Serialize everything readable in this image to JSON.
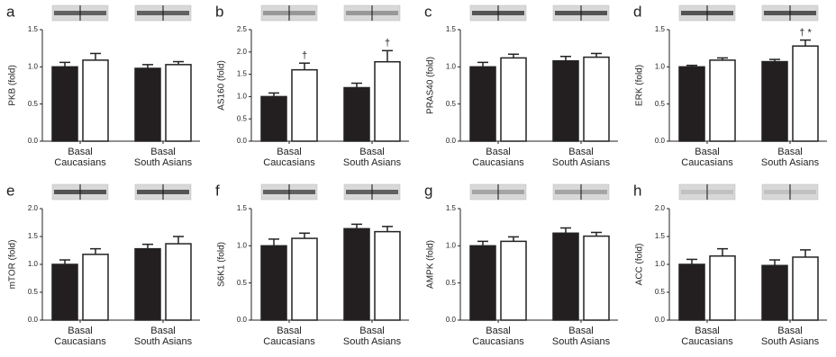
{
  "chart_data": [
    {
      "type": "bar",
      "panel": "a",
      "ylabel": "PKB (fold)",
      "categories": [
        [
          "Basal",
          "Caucasians"
        ],
        [
          "Basal",
          "South Asians"
        ]
      ],
      "ylim": [
        0,
        1.5
      ],
      "yticks": [
        {
          "value": 0,
          "label": "0.0"
        },
        0.5,
        {
          "value": 1,
          "label": "1.0"
        },
        1.5
      ],
      "series": [
        {
          "color": "#231f20",
          "values": [
            1.0,
            0.98
          ],
          "errors": [
            0.06,
            0.05
          ]
        },
        {
          "color": "#ffffff",
          "values": [
            1.09,
            1.03
          ],
          "errors": [
            0.09,
            0.04
          ]
        }
      ]
    },
    {
      "type": "bar",
      "panel": "b",
      "ylabel": "AS160 (fold)",
      "categories": [
        [
          "Basal",
          "Caucasians"
        ],
        [
          "Basal",
          "South Asians"
        ]
      ],
      "ylim": [
        0,
        2.5
      ],
      "yticks": [
        {
          "value": 0,
          "label": "0.0"
        },
        0.5,
        {
          "value": 1,
          "label": "1.0"
        },
        1.5,
        {
          "value": 2,
          "label": "2.0"
        },
        2.5
      ],
      "series": [
        {
          "color": "#231f20",
          "values": [
            1.0,
            1.2
          ],
          "errors": [
            0.08,
            0.1
          ]
        },
        {
          "color": "#ffffff",
          "values": [
            1.6,
            1.78
          ],
          "errors": [
            0.15,
            0.25
          ],
          "markers": [
            "†",
            "†"
          ]
        }
      ]
    },
    {
      "type": "bar",
      "panel": "c",
      "ylabel": "PRAS40 (fold)",
      "categories": [
        [
          "Basal",
          "Caucasians"
        ],
        [
          "Basal",
          "South Asians"
        ]
      ],
      "ylim": [
        0,
        1.5
      ],
      "yticks": [
        {
          "value": 0,
          "label": "0.0"
        },
        0.5,
        {
          "value": 1,
          "label": "1.0"
        },
        1.5
      ],
      "series": [
        {
          "color": "#231f20",
          "values": [
            1.0,
            1.08
          ],
          "errors": [
            0.06,
            0.06
          ]
        },
        {
          "color": "#ffffff",
          "values": [
            1.12,
            1.13
          ],
          "errors": [
            0.05,
            0.05
          ]
        }
      ]
    },
    {
      "type": "bar",
      "panel": "d",
      "ylabel": "ERK (fold)",
      "categories": [
        [
          "Basal",
          "Caucasians"
        ],
        [
          "Basal",
          "South Asians"
        ]
      ],
      "ylim": [
        0,
        1.5
      ],
      "yticks": [
        {
          "value": 0,
          "label": "0.0"
        },
        0.5,
        {
          "value": 1,
          "label": "1.0"
        },
        1.5
      ],
      "series": [
        {
          "color": "#231f20",
          "values": [
            1.0,
            1.07
          ],
          "errors": [
            0.02,
            0.03
          ]
        },
        {
          "color": "#ffffff",
          "values": [
            1.09,
            1.28
          ],
          "errors": [
            0.03,
            0.08
          ],
          "markers": [
            null,
            "† *"
          ]
        }
      ]
    },
    {
      "type": "bar",
      "panel": "e",
      "ylabel": "mTOR (fold)",
      "categories": [
        [
          "Basal",
          "Caucasians"
        ],
        [
          "Basal",
          "South Asians"
        ]
      ],
      "ylim": [
        0,
        2.0
      ],
      "yticks": [
        {
          "value": 0,
          "label": "0.0"
        },
        0.5,
        {
          "value": 1,
          "label": "1.0"
        },
        1.5,
        {
          "value": 2,
          "label": "2.0"
        }
      ],
      "series": [
        {
          "color": "#231f20",
          "values": [
            1.0,
            1.28
          ],
          "errors": [
            0.08,
            0.08
          ]
        },
        {
          "color": "#ffffff",
          "values": [
            1.18,
            1.37
          ],
          "errors": [
            0.1,
            0.13
          ]
        }
      ]
    },
    {
      "type": "bar",
      "panel": "f",
      "ylabel": "S6K1 (fold)",
      "categories": [
        [
          "Basal",
          "Caucasians"
        ],
        [
          "Basal",
          "South Asians"
        ]
      ],
      "ylim": [
        0,
        1.5
      ],
      "yticks": [
        {
          "value": 0,
          "label": "0.0"
        },
        0.5,
        {
          "value": 1,
          "label": "1.0"
        },
        1.5
      ],
      "series": [
        {
          "color": "#231f20",
          "values": [
            1.0,
            1.23
          ],
          "errors": [
            0.09,
            0.06
          ]
        },
        {
          "color": "#ffffff",
          "values": [
            1.1,
            1.19
          ],
          "errors": [
            0.07,
            0.07
          ]
        }
      ]
    },
    {
      "type": "bar",
      "panel": "g",
      "ylabel": "AMPK (fold)",
      "categories": [
        [
          "Basal",
          "Caucasians"
        ],
        [
          "Basal",
          "South Asians"
        ]
      ],
      "ylim": [
        0,
        1.5
      ],
      "yticks": [
        {
          "value": 0,
          "label": "0.0"
        },
        0.5,
        {
          "value": 1,
          "label": "1.0"
        },
        1.5
      ],
      "series": [
        {
          "color": "#231f20",
          "values": [
            1.0,
            1.17
          ],
          "errors": [
            0.06,
            0.07
          ]
        },
        {
          "color": "#ffffff",
          "values": [
            1.06,
            1.13
          ],
          "errors": [
            0.06,
            0.05
          ]
        }
      ]
    },
    {
      "type": "bar",
      "panel": "h",
      "ylabel": "ACC (fold)",
      "categories": [
        [
          "Basal",
          "Caucasians"
        ],
        [
          "Basal",
          "South Asians"
        ]
      ],
      "ylim": [
        0,
        2.0
      ],
      "yticks": [
        {
          "value": 0,
          "label": "0.0"
        },
        0.5,
        {
          "value": 1,
          "label": "1.0"
        },
        1.5,
        {
          "value": 2,
          "label": "2.0"
        }
      ],
      "series": [
        {
          "color": "#231f20",
          "values": [
            1.0,
            0.98
          ],
          "errors": [
            0.09,
            0.1
          ]
        },
        {
          "color": "#ffffff",
          "values": [
            1.15,
            1.13
          ],
          "errors": [
            0.13,
            0.13
          ]
        }
      ]
    }
  ]
}
